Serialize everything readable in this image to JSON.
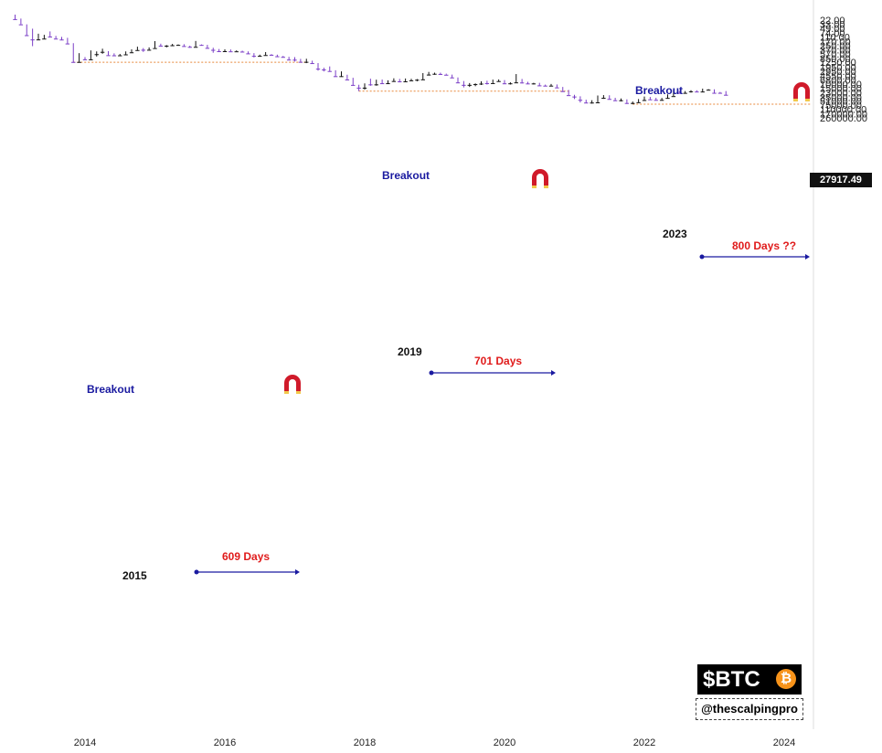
{
  "chart_data": {
    "type": "candlestick",
    "scale": "log",
    "y_ticks": [
      "260000.00",
      "170000.00",
      "110000.00",
      "75000.00",
      "51000.00",
      "35000.00",
      "23000.00",
      "15000.00",
      "10000.00",
      "6800.00",
      "4550.00",
      "2950.00",
      "1950.00",
      "1250.00",
      "850.00",
      "570.00",
      "370.00",
      "250.00",
      "170.00",
      "110.00",
      "74.00",
      "49.00",
      "33.00",
      "22.00"
    ],
    "x_ticks": [
      "2014",
      "2016",
      "2018",
      "2020",
      "2022",
      "2024"
    ],
    "current_price": "27917.49",
    "candles": [
      {
        "t": "2013-01",
        "o": 13,
        "h": 21,
        "l": 13,
        "c": 20
      },
      {
        "t": "2013-02",
        "o": 20,
        "h": 33,
        "l": 19,
        "c": 33
      },
      {
        "t": "2013-03",
        "o": 33,
        "h": 95,
        "l": 33,
        "c": 93
      },
      {
        "t": "2013-04",
        "o": 93,
        "h": 266,
        "l": 50,
        "c": 140
      },
      {
        "t": "2013-05",
        "o": 140,
        "h": 150,
        "l": 81,
        "c": 129
      },
      {
        "t": "2013-06",
        "o": 129,
        "h": 130,
        "l": 90,
        "c": 97
      },
      {
        "t": "2013-07",
        "o": 97,
        "h": 110,
        "l": 65,
        "c": 106
      },
      {
        "t": "2013-08",
        "o": 106,
        "h": 130,
        "l": 100,
        "c": 129
      },
      {
        "t": "2013-09",
        "o": 129,
        "h": 145,
        "l": 110,
        "c": 141
      },
      {
        "t": "2013-10",
        "o": 141,
        "h": 220,
        "l": 120,
        "c": 206
      },
      {
        "t": "2013-11",
        "o": 206,
        "h": 1240,
        "l": 200,
        "c": 1205
      },
      {
        "t": "2013-12",
        "o": 1205,
        "h": 1240,
        "l": 520,
        "c": 805
      },
      {
        "t": "2014-01",
        "o": 805,
        "h": 1000,
        "l": 760,
        "c": 940
      },
      {
        "t": "2014-02",
        "o": 940,
        "h": 950,
        "l": 400,
        "c": 573
      },
      {
        "t": "2014-03",
        "o": 573,
        "h": 720,
        "l": 440,
        "c": 458
      },
      {
        "t": "2014-04",
        "o": 458,
        "h": 550,
        "l": 340,
        "c": 448
      },
      {
        "t": "2014-05",
        "o": 448,
        "h": 630,
        "l": 430,
        "c": 630
      },
      {
        "t": "2014-06",
        "o": 630,
        "h": 680,
        "l": 530,
        "c": 640
      },
      {
        "t": "2014-07",
        "o": 640,
        "h": 650,
        "l": 560,
        "c": 585
      },
      {
        "t": "2014-08",
        "o": 585,
        "h": 600,
        "l": 440,
        "c": 480
      },
      {
        "t": "2014-09",
        "o": 480,
        "h": 500,
        "l": 360,
        "c": 387
      },
      {
        "t": "2014-10",
        "o": 387,
        "h": 410,
        "l": 280,
        "c": 338
      },
      {
        "t": "2014-11",
        "o": 338,
        "h": 460,
        "l": 320,
        "c": 375
      },
      {
        "t": "2014-12",
        "o": 375,
        "h": 390,
        "l": 300,
        "c": 320
      },
      {
        "t": "2015-01",
        "o": 320,
        "h": 320,
        "l": 165,
        "c": 218
      },
      {
        "t": "2015-02",
        "o": 218,
        "h": 270,
        "l": 210,
        "c": 254
      },
      {
        "t": "2015-03",
        "o": 254,
        "h": 300,
        "l": 240,
        "c": 244
      },
      {
        "t": "2015-04",
        "o": 244,
        "h": 260,
        "l": 215,
        "c": 236
      },
      {
        "t": "2015-05",
        "o": 236,
        "h": 245,
        "l": 225,
        "c": 230
      },
      {
        "t": "2015-06",
        "o": 230,
        "h": 265,
        "l": 220,
        "c": 263
      },
      {
        "t": "2015-07",
        "o": 263,
        "h": 310,
        "l": 255,
        "c": 284
      },
      {
        "t": "2015-08",
        "o": 284,
        "h": 285,
        "l": 162,
        "c": 230
      },
      {
        "t": "2015-09",
        "o": 230,
        "h": 245,
        "l": 225,
        "c": 236
      },
      {
        "t": "2015-10",
        "o": 236,
        "h": 330,
        "l": 235,
        "c": 314
      },
      {
        "t": "2015-11",
        "o": 314,
        "h": 500,
        "l": 310,
        "c": 378
      },
      {
        "t": "2015-12",
        "o": 378,
        "h": 470,
        "l": 350,
        "c": 430
      },
      {
        "t": "2016-01",
        "o": 430,
        "h": 460,
        "l": 360,
        "c": 368
      },
      {
        "t": "2016-02",
        "o": 368,
        "h": 440,
        "l": 365,
        "c": 437
      },
      {
        "t": "2016-03",
        "o": 437,
        "h": 440,
        "l": 400,
        "c": 416
      },
      {
        "t": "2016-04",
        "o": 416,
        "h": 470,
        "l": 410,
        "c": 448
      },
      {
        "t": "2016-05",
        "o": 448,
        "h": 550,
        "l": 440,
        "c": 531
      },
      {
        "t": "2016-06",
        "o": 531,
        "h": 780,
        "l": 520,
        "c": 673
      },
      {
        "t": "2016-07",
        "o": 673,
        "h": 700,
        "l": 600,
        "c": 624
      },
      {
        "t": "2016-08",
        "o": 624,
        "h": 630,
        "l": 470,
        "c": 573
      },
      {
        "t": "2016-09",
        "o": 573,
        "h": 620,
        "l": 570,
        "c": 608
      },
      {
        "t": "2016-10",
        "o": 608,
        "h": 720,
        "l": 600,
        "c": 700
      },
      {
        "t": "2016-11",
        "o": 700,
        "h": 760,
        "l": 680,
        "c": 742
      },
      {
        "t": "2016-12",
        "o": 742,
        "h": 975,
        "l": 740,
        "c": 963
      },
      {
        "t": "2017-01",
        "o": 963,
        "h": 1160,
        "l": 760,
        "c": 970
      },
      {
        "t": "2017-02",
        "o": 970,
        "h": 1200,
        "l": 900,
        "c": 1190
      },
      {
        "t": "2017-03",
        "o": 1190,
        "h": 1350,
        "l": 890,
        "c": 1080
      },
      {
        "t": "2017-04",
        "o": 1080,
        "h": 1430,
        "l": 1070,
        "c": 1348
      },
      {
        "t": "2017-05",
        "o": 1348,
        "h": 2760,
        "l": 1340,
        "c": 2300
      },
      {
        "t": "2017-06",
        "o": 2300,
        "h": 3000,
        "l": 2100,
        "c": 2480
      },
      {
        "t": "2017-07",
        "o": 2480,
        "h": 2950,
        "l": 1850,
        "c": 2875
      },
      {
        "t": "2017-08",
        "o": 2875,
        "h": 4780,
        "l": 2670,
        "c": 4700
      },
      {
        "t": "2017-09",
        "o": 4700,
        "h": 5000,
        "l": 2970,
        "c": 4340
      },
      {
        "t": "2017-10",
        "o": 4340,
        "h": 6450,
        "l": 4100,
        "c": 6460
      },
      {
        "t": "2017-11",
        "o": 6460,
        "h": 11500,
        "l": 5500,
        "c": 10850
      },
      {
        "t": "2017-12",
        "o": 10850,
        "h": 19800,
        "l": 10700,
        "c": 14150
      },
      {
        "t": "2018-01",
        "o": 14150,
        "h": 17200,
        "l": 9400,
        "c": 10220
      },
      {
        "t": "2018-02",
        "o": 10220,
        "h": 11800,
        "l": 6000,
        "c": 10330
      },
      {
        "t": "2018-03",
        "o": 10330,
        "h": 11700,
        "l": 6600,
        "c": 6930
      },
      {
        "t": "2018-04",
        "o": 6930,
        "h": 9750,
        "l": 6500,
        "c": 9240
      },
      {
        "t": "2018-05",
        "o": 9240,
        "h": 9990,
        "l": 7000,
        "c": 7490
      },
      {
        "t": "2018-06",
        "o": 7490,
        "h": 7760,
        "l": 5780,
        "c": 6390
      },
      {
        "t": "2018-07",
        "o": 6390,
        "h": 8500,
        "l": 6100,
        "c": 7730
      },
      {
        "t": "2018-08",
        "o": 7730,
        "h": 7760,
        "l": 5880,
        "c": 7020
      },
      {
        "t": "2018-09",
        "o": 7020,
        "h": 7400,
        "l": 6100,
        "c": 6630
      },
      {
        "t": "2018-10",
        "o": 6630,
        "h": 7700,
        "l": 6200,
        "c": 6370
      },
      {
        "t": "2018-11",
        "o": 6370,
        "h": 6600,
        "l": 3500,
        "c": 4040
      },
      {
        "t": "2018-12",
        "o": 4040,
        "h": 4400,
        "l": 3130,
        "c": 3740
      },
      {
        "t": "2019-01",
        "o": 3740,
        "h": 4100,
        "l": 3350,
        "c": 3460
      },
      {
        "t": "2019-02",
        "o": 3460,
        "h": 4200,
        "l": 3370,
        "c": 3810
      },
      {
        "t": "2019-03",
        "o": 3810,
        "h": 4100,
        "l": 3700,
        "c": 4100
      },
      {
        "t": "2019-04",
        "o": 4100,
        "h": 5650,
        "l": 4050,
        "c": 5320
      },
      {
        "t": "2019-05",
        "o": 5320,
        "h": 9000,
        "l": 5300,
        "c": 8560
      },
      {
        "t": "2019-06",
        "o": 8560,
        "h": 13850,
        "l": 7500,
        "c": 10800
      },
      {
        "t": "2019-07",
        "o": 10800,
        "h": 13200,
        "l": 9100,
        "c": 10080
      },
      {
        "t": "2019-08",
        "o": 10080,
        "h": 12300,
        "l": 9400,
        "c": 9600
      },
      {
        "t": "2019-09",
        "o": 9600,
        "h": 10900,
        "l": 7700,
        "c": 8290
      },
      {
        "t": "2019-10",
        "o": 8290,
        "h": 10500,
        "l": 7300,
        "c": 9150
      },
      {
        "t": "2019-11",
        "o": 9150,
        "h": 9500,
        "l": 6550,
        "c": 7540
      },
      {
        "t": "2019-12",
        "o": 7540,
        "h": 7750,
        "l": 6430,
        "c": 7190
      },
      {
        "t": "2020-01",
        "o": 7190,
        "h": 9580,
        "l": 6850,
        "c": 9350
      },
      {
        "t": "2020-02",
        "o": 9350,
        "h": 10500,
        "l": 8450,
        "c": 8540
      },
      {
        "t": "2020-03",
        "o": 8540,
        "h": 9200,
        "l": 3850,
        "c": 6410
      },
      {
        "t": "2020-04",
        "o": 6410,
        "h": 9450,
        "l": 6150,
        "c": 8620
      },
      {
        "t": "2020-05",
        "o": 8620,
        "h": 10070,
        "l": 8100,
        "c": 9450
      },
      {
        "t": "2020-06",
        "o": 9450,
        "h": 10400,
        "l": 8900,
        "c": 9140
      },
      {
        "t": "2020-07",
        "o": 9140,
        "h": 11450,
        "l": 8900,
        "c": 11350
      },
      {
        "t": "2020-08",
        "o": 11350,
        "h": 12470,
        "l": 10550,
        "c": 11650
      },
      {
        "t": "2020-09",
        "o": 11650,
        "h": 12100,
        "l": 9880,
        "c": 10780
      },
      {
        "t": "2020-10",
        "o": 10780,
        "h": 14100,
        "l": 10400,
        "c": 13800
      },
      {
        "t": "2020-11",
        "o": 13800,
        "h": 19900,
        "l": 13200,
        "c": 19700
      },
      {
        "t": "2020-12",
        "o": 19700,
        "h": 29300,
        "l": 17600,
        "c": 28990
      },
      {
        "t": "2021-01",
        "o": 28990,
        "h": 41900,
        "l": 28150,
        "c": 33100
      },
      {
        "t": "2021-02",
        "o": 33100,
        "h": 58300,
        "l": 32300,
        "c": 45200
      },
      {
        "t": "2021-03",
        "o": 45200,
        "h": 61800,
        "l": 44900,
        "c": 58800
      },
      {
        "t": "2021-04",
        "o": 58800,
        "h": 64900,
        "l": 47000,
        "c": 57700
      },
      {
        "t": "2021-05",
        "o": 57700,
        "h": 59500,
        "l": 30000,
        "c": 37300
      },
      {
        "t": "2021-06",
        "o": 37300,
        "h": 41300,
        "l": 28800,
        "c": 35000
      },
      {
        "t": "2021-07",
        "o": 35000,
        "h": 42300,
        "l": 29300,
        "c": 41500
      },
      {
        "t": "2021-08",
        "o": 41500,
        "h": 50500,
        "l": 37300,
        "c": 47100
      },
      {
        "t": "2021-09",
        "o": 47100,
        "h": 52900,
        "l": 39600,
        "c": 43800
      },
      {
        "t": "2021-10",
        "o": 43800,
        "h": 67000,
        "l": 43300,
        "c": 61300
      },
      {
        "t": "2021-11",
        "o": 61300,
        "h": 69000,
        "l": 53300,
        "c": 57000
      },
      {
        "t": "2021-12",
        "o": 57000,
        "h": 59100,
        "l": 42000,
        "c": 46200
      },
      {
        "t": "2022-01",
        "o": 46200,
        "h": 48000,
        "l": 32900,
        "c": 38500
      },
      {
        "t": "2022-02",
        "o": 38500,
        "h": 45800,
        "l": 34300,
        "c": 43200
      },
      {
        "t": "2022-03",
        "o": 43200,
        "h": 48200,
        "l": 37200,
        "c": 45500
      },
      {
        "t": "2022-04",
        "o": 45500,
        "h": 47400,
        "l": 37600,
        "c": 37700
      },
      {
        "t": "2022-05",
        "o": 37700,
        "h": 40000,
        "l": 26700,
        "c": 31800
      },
      {
        "t": "2022-06",
        "o": 31800,
        "h": 31900,
        "l": 17600,
        "c": 19900
      },
      {
        "t": "2022-07",
        "o": 19900,
        "h": 24700,
        "l": 18800,
        "c": 23300
      },
      {
        "t": "2022-08",
        "o": 23300,
        "h": 25200,
        "l": 19600,
        "c": 20000
      },
      {
        "t": "2022-09",
        "o": 20000,
        "h": 22800,
        "l": 18150,
        "c": 19400
      },
      {
        "t": "2022-10",
        "o": 19400,
        "h": 20900,
        "l": 18200,
        "c": 20500
      },
      {
        "t": "2022-11",
        "o": 20500,
        "h": 21500,
        "l": 15500,
        "c": 17200
      },
      {
        "t": "2022-12",
        "o": 17200,
        "h": 18400,
        "l": 16300,
        "c": 16550
      },
      {
        "t": "2023-01",
        "o": 16550,
        "h": 23900,
        "l": 16500,
        "c": 23130
      },
      {
        "t": "2023-02",
        "o": 23130,
        "h": 25200,
        "l": 21400,
        "c": 23150
      },
      {
        "t": "2023-03",
        "o": 23150,
        "h": 29000,
        "l": 19600,
        "c": 27917.49
      }
    ]
  },
  "annotations": {
    "breakout_1": "Breakout",
    "breakout_2": "Breakout",
    "breakout_3": "Breakout",
    "year_1": "2015",
    "year_2": "2019",
    "year_3": "2023",
    "days_1": "609 Days",
    "days_2": "701 Days",
    "days_3": "800 Days ??"
  },
  "branding": {
    "ticker": "$BTC",
    "coin_symbol": "₿",
    "handle": "@thescalpingpro"
  },
  "colors": {
    "up": "#7b3fc7",
    "down": "#111111",
    "breakout_line": "#e8873a",
    "range_arrow": "#1a1aa0",
    "magnet": "#d01a2a"
  }
}
